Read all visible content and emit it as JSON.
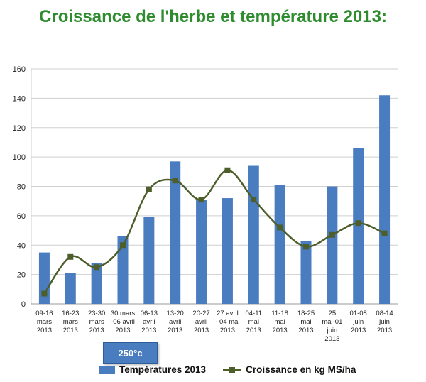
{
  "title": "Croissance de l'herbe et température  2013:",
  "annotation_box": "250°c",
  "colors": {
    "title": "#2e8b2e",
    "bars": "#4a7cc0",
    "line": "#4d5e2a"
  },
  "chart_data": {
    "type": "bar",
    "title": "Croissance de l'herbe et température  2013:",
    "xlabel": "",
    "ylabel": "",
    "ylim": [
      0,
      160
    ],
    "yticks": [
      0,
      20,
      40,
      60,
      80,
      100,
      120,
      140,
      160
    ],
    "grid": true,
    "legend": "bottom",
    "categories": [
      [
        "09-16",
        "mars",
        "2013"
      ],
      [
        "16-23",
        "mars",
        "2013"
      ],
      [
        "23-30",
        "mars",
        "2013"
      ],
      [
        "30 mars",
        "-06 avril",
        "2013"
      ],
      [
        "06-13",
        "avril",
        "2013"
      ],
      [
        "13-20",
        "avril",
        "2013"
      ],
      [
        "20-27",
        "avril",
        "2013"
      ],
      [
        "27 avril",
        "- 04 mai",
        "2013"
      ],
      [
        "04-11",
        "mai",
        "2013"
      ],
      [
        "11-18",
        "mai",
        "2013"
      ],
      [
        "18-25",
        "mai",
        "2013"
      ],
      [
        "25",
        "mai-01",
        "juin",
        "2013"
      ],
      [
        "01-08",
        "juin",
        "2013"
      ],
      [
        "08-14",
        "juin",
        "2013"
      ]
    ],
    "series": [
      {
        "name": "Températures 2013",
        "kind": "bar",
        "values": [
          35,
          21,
          28,
          46,
          59,
          97,
          71,
          72,
          94,
          81,
          43,
          80,
          106,
          142
        ]
      },
      {
        "name": "Croissance en kg MS/ha",
        "kind": "line",
        "values": [
          7,
          32,
          25,
          40,
          78,
          84,
          71,
          91,
          71,
          52,
          39,
          47,
          55,
          48
        ]
      }
    ]
  }
}
